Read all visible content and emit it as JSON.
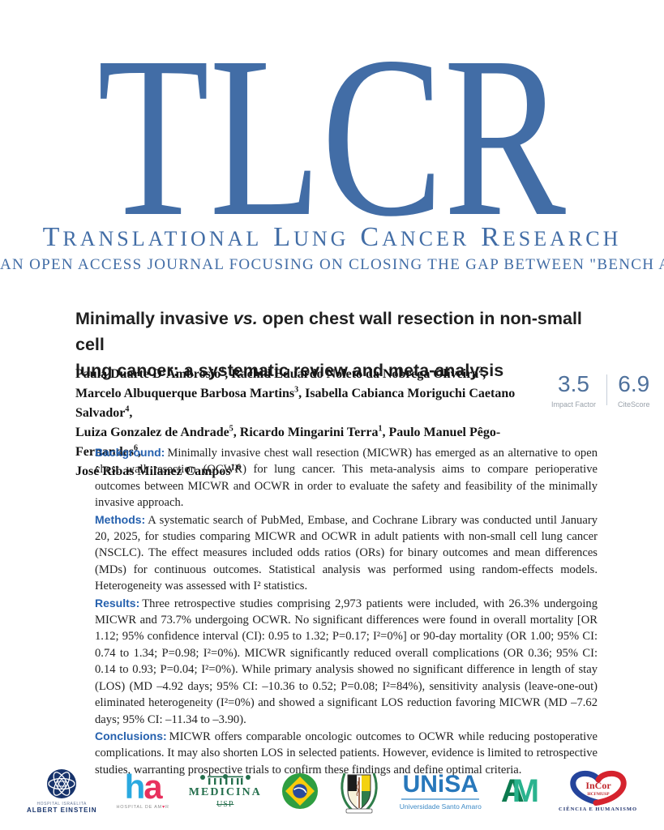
{
  "journal": {
    "logo_text": "TLCR",
    "name_display": "TRANSLATIONAL LUNG CANCER RESEARCH",
    "tagline": "AN OPEN ACCESS JOURNAL FOCUSING ON CLOSING THE GAP BETWEEN \"BENCH AND BEDSIDE\""
  },
  "metrics": {
    "impact_factor": {
      "value": "3.5",
      "label": "Impact Factor"
    },
    "citescore": {
      "value": "6.9",
      "label": "CiteScore"
    }
  },
  "article": {
    "title": {
      "pre": "Minimally invasive ",
      "vs": "vs.",
      "post": " open chest wall resection in non-small cell",
      "line2": "lung cancer: a systematic review and meta-analysis"
    },
    "authors": [
      {
        "runs": [
          {
            "t": "Paula Duarte D’Ambrosio",
            "s": "1"
          },
          {
            "t": ", Rachid Eduardo Noleto da Nobrega Oliveira",
            "s": "2"
          },
          {
            "t": ","
          }
        ]
      },
      {
        "runs": [
          {
            "t": "Marcelo Albuquerque Barbosa Martins",
            "s": "3"
          },
          {
            "t": ", Isabella Cabianca Moriguchi Caetano Salvador",
            "s": "4"
          },
          {
            "t": ","
          }
        ]
      },
      {
        "runs": [
          {
            "t": "Luiza Gonzalez de Andrade",
            "s": "5"
          },
          {
            "t": ", Ricardo Mingarini Terra",
            "s": "1"
          },
          {
            "t": ", Paulo Manuel Pêgo-Fernandes",
            "s": "6"
          },
          {
            "t": ","
          }
        ]
      },
      {
        "runs": [
          {
            "t": "José Ribas Milanez Campos",
            "s": "1,6"
          }
        ]
      }
    ]
  },
  "abstract": {
    "sections": [
      {
        "label": "Background:",
        "text": "Minimally invasive chest wall resection (MICWR) has emerged as an alternative to open chest wall resection (OCWR) for lung cancer. This meta-analysis aims to compare perioperative outcomes between MICWR and OCWR in order to evaluate the safety and feasibility of the minimally invasive approach."
      },
      {
        "label": "Methods:",
        "text": "A systematic search of PubMed, Embase, and Cochrane Library was conducted until January 20, 2025, for studies comparing MICWR and OCWR in adult patients with non-small cell lung cancer (NSCLC). The effect measures included odds ratios (ORs) for binary outcomes and mean differences (MDs) for continuous outcomes. Statistical analysis was performed using random-effects models. Heterogeneity was assessed with I² statistics."
      },
      {
        "label": "Results:",
        "text": "Three retrospective studies comprising 2,973 patients were included, with 26.3% undergoing MICWR and 73.7% undergoing OCWR. No significant differences were found in overall mortality [OR 1.12; 95% confidence interval (CI): 0.95 to 1.32; P=0.17; I²=0%] or 90-day mortality (OR 1.00; 95% CI: 0.74 to 1.34; P=0.98; I²=0%). MICWR significantly reduced overall complications (OR 0.36; 95% CI: 0.14 to 0.93; P=0.04; I²=0%). While primary analysis showed no significant difference in length of stay (LOS) (MD –4.92 days; 95% CI: –10.36 to 0.52; P=0.08; I²=84%), sensitivity analysis (leave-one-out) eliminated heterogeneity (I²=0%) and showed a significant LOS reduction favoring MICWR (MD –7.62 days; 95% CI: –11.34 to –3.90)."
      },
      {
        "label": "Conclusions:",
        "text": "MICWR offers comparable oncologic outcomes to OCWR while reducing postoperative complications. It may also shorten LOS in selected patients. However, evidence is limited to retrospective studies, warranting prospective trials to confirm these findings and define optimal criteria."
      }
    ]
  },
  "footer_logos": [
    {
      "id": "albert-einstein",
      "line1": "HOSPITAL ISRAELITA",
      "line2": "ALBERT EINSTEIN"
    },
    {
      "id": "hospital-de-amor",
      "mark_h": "h",
      "mark_a": "a",
      "caption_pre": "HOSPITAL DE AM",
      "heart": "♥",
      "caption_post": "R"
    },
    {
      "id": "medicina-usp",
      "title": "MEDICINA",
      "sub": "USP"
    },
    {
      "id": "brazil-flag"
    },
    {
      "id": "medical-school-crest"
    },
    {
      "id": "unisa",
      "mark": "UNiSA",
      "caption": "Universidade Santo Amaro"
    },
    {
      "id": "am-monogram",
      "letter_a": "A",
      "letter_m": "M"
    },
    {
      "id": "incor",
      "mark": "InCor",
      "sub": "HCFMUSP",
      "caption": "CIÊNCIA E HUMANISMO"
    }
  ],
  "colors": {
    "brand_blue": "#426da6",
    "section_label_blue": "#2661ae",
    "title_black": "#1f1f1f",
    "metric_blue": "#4f719c",
    "metric_label_gray": "#9aa2ab",
    "einstein_navy": "#17336b",
    "ha_blue": "#2aa9e0",
    "ha_pink": "#e8315e",
    "medicina_green": "#256f4d",
    "flag_green": "#2f9e41",
    "flag_yellow": "#f8cc0b",
    "flag_blue": "#2a4b9b",
    "unisa_blue": "#2878bb",
    "am_dark_green": "#0c7a4f",
    "am_teal": "#2ab38e",
    "incor_blue": "#24449c",
    "incor_red": "#d5232e"
  }
}
